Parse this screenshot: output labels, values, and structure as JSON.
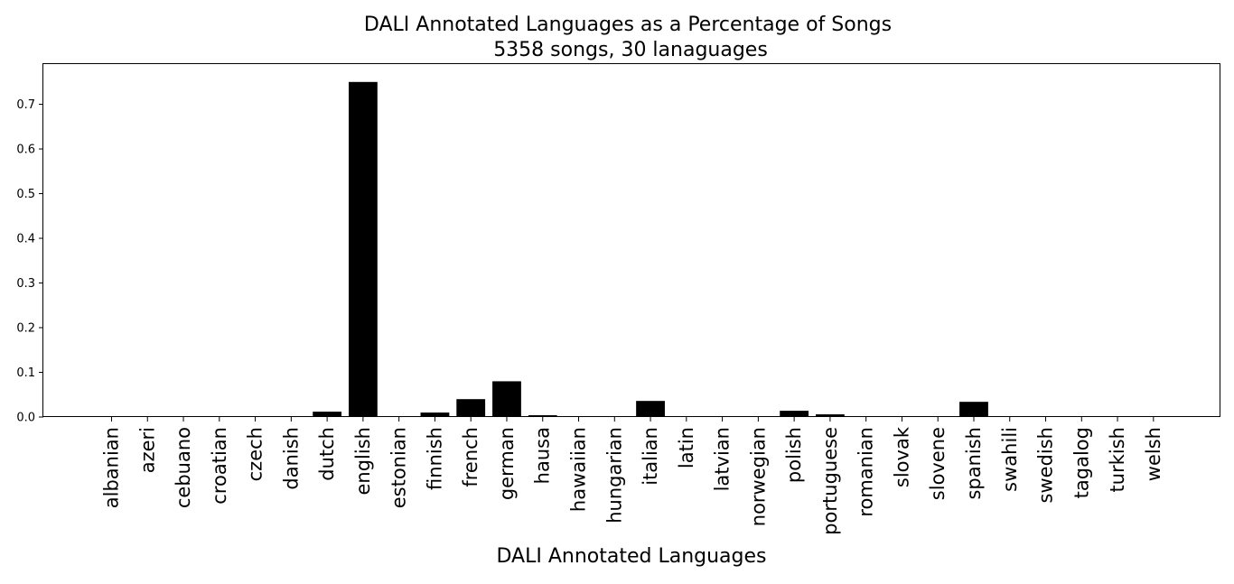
{
  "chart_data": {
    "type": "bar",
    "title": "DALI Annotated Languages as a Percentage of Songs",
    "subtitle": "5358 songs, 30 lanaguages",
    "xlabel": "DALI Annotated Languages",
    "ylabel": "",
    "ylim": [
      0,
      0.79
    ],
    "yticks": [
      0.0,
      0.1,
      0.2,
      0.3,
      0.4,
      0.5,
      0.6,
      0.7
    ],
    "ytick_labels": [
      "0.0",
      "0.1",
      "0.2",
      "0.3",
      "0.4",
      "0.5",
      "0.6",
      "0.7"
    ],
    "grid": false,
    "bar_color": "#000000",
    "categories": [
      "albanian",
      "azeri",
      "cebuano",
      "croatian",
      "czech",
      "danish",
      "dutch",
      "english",
      "estonian",
      "finnish",
      "french",
      "german",
      "hausa",
      "hawaiian",
      "hungarian",
      "italian",
      "latin",
      "latvian",
      "norwegian",
      "polish",
      "portuguese",
      "romanian",
      "slovak",
      "slovene",
      "spanish",
      "swahili",
      "swedish",
      "tagalog",
      "turkish",
      "welsh"
    ],
    "values": [
      0.0002,
      0.0002,
      0.0002,
      0.0015,
      0.0002,
      0.0002,
      0.012,
      0.75,
      0.0002,
      0.01,
      0.04,
      0.08,
      0.004,
      0.0002,
      0.0015,
      0.036,
      0.0002,
      0.0002,
      0.0015,
      0.014,
      0.006,
      0.0002,
      0.0002,
      0.0002,
      0.034,
      0.0015,
      0.0015,
      0.0002,
      0.0015,
      0.0002
    ]
  }
}
